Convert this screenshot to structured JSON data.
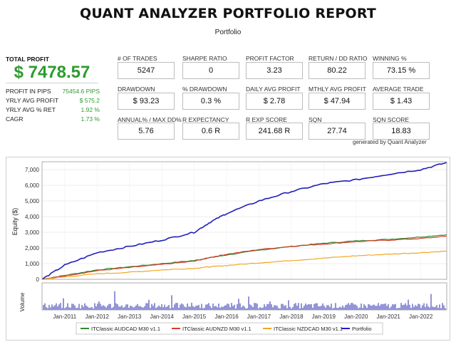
{
  "header": {
    "title": "QUANT ANALYZER PORTFOLIO REPORT",
    "subtitle": "Portfolio"
  },
  "summary": {
    "total_profit_label": "TOTAL PROFIT",
    "total_profit_value": "$ 7478.57",
    "rows": [
      {
        "label": "PROFIT IN PIPS",
        "value": "75454.6 PIPS"
      },
      {
        "label": "YRLY AVG PROFIT",
        "value": "$ 575.2"
      },
      {
        "label": "YRLY AVG % RET",
        "value": "1.92 %"
      },
      {
        "label": "CAGR",
        "value": "1.73 %"
      }
    ]
  },
  "stats": [
    {
      "label": "# OF TRADES",
      "value": "5247"
    },
    {
      "label": "SHARPE RATIO",
      "value": "0"
    },
    {
      "label": "PROFIT FACTOR",
      "value": "3.23"
    },
    {
      "label": "RETURN / DD RATIO",
      "value": "80.22"
    },
    {
      "label": "WINNING %",
      "value": "73.15 %"
    },
    {
      "label": "DRAWDOWN",
      "value": "$ 93.23"
    },
    {
      "label": "% DRAWDOWN",
      "value": "0.3 %"
    },
    {
      "label": "DAILY AVG PROFIT",
      "value": "$ 2.78"
    },
    {
      "label": "MTHLY AVG PROFIT",
      "value": "$ 47.94"
    },
    {
      "label": "AVERAGE TRADE",
      "value": "$ 1.43"
    },
    {
      "label": "ANNUAL% / MAX DD%",
      "value": "5.76"
    },
    {
      "label": "R EXPECTANCY",
      "value": "0.6 R"
    },
    {
      "label": "R EXP SCORE",
      "value": "241.68 R"
    },
    {
      "label": "SQN",
      "value": "27.74"
    },
    {
      "label": "SQN SCORE",
      "value": "18.83"
    }
  ],
  "generated_by": "generated by Quant Analyzer",
  "chart_data": {
    "type": "line",
    "ylabel": "Equity ($)",
    "volume_label": "Volume",
    "ylim": [
      0,
      7500
    ],
    "yticks": [
      "0",
      "1,000",
      "2,000",
      "3,000",
      "4,000",
      "5,000",
      "6,000",
      "7,000"
    ],
    "xticks": [
      "Jan-2011",
      "Jan-2012",
      "Jan-2013",
      "Jan-2014",
      "Jan-2015",
      "Jan-2016",
      "Jan-2017",
      "Jan-2018",
      "Jan-2019",
      "Jan-2020",
      "Jan-2021",
      "Jan-2022"
    ],
    "x": [
      2010.3,
      2011,
      2012,
      2013,
      2014,
      2015,
      2015.5,
      2016,
      2017,
      2018,
      2019,
      2020,
      2021,
      2022,
      2022.8
    ],
    "series": [
      {
        "name": "ITClassic AUDCAD M30 v1.1",
        "color": "#2f8a2f",
        "values": [
          0,
          250,
          600,
          800,
          1000,
          1200,
          1380,
          1550,
          1850,
          2100,
          2300,
          2450,
          2550,
          2700,
          2850
        ]
      },
      {
        "name": "ITClassic AUDNZD M30 v1.1",
        "color": "#d63c2a",
        "values": [
          0,
          220,
          550,
          750,
          950,
          1150,
          1400,
          1600,
          1900,
          2100,
          2250,
          2400,
          2500,
          2600,
          2750
        ]
      },
      {
        "name": "ITClassic NZDCAD M30 v1.1",
        "color": "#f2a623",
        "values": [
          0,
          150,
          350,
          450,
          600,
          700,
          800,
          880,
          1050,
          1200,
          1350,
          1500,
          1600,
          1700,
          1800
        ]
      },
      {
        "name": "Portfolio",
        "color": "#1f1fb8",
        "values": [
          0,
          900,
          1700,
          2100,
          2500,
          3000,
          3650,
          4200,
          5000,
          5600,
          6100,
          6350,
          6700,
          7000,
          7450
        ]
      }
    ]
  }
}
